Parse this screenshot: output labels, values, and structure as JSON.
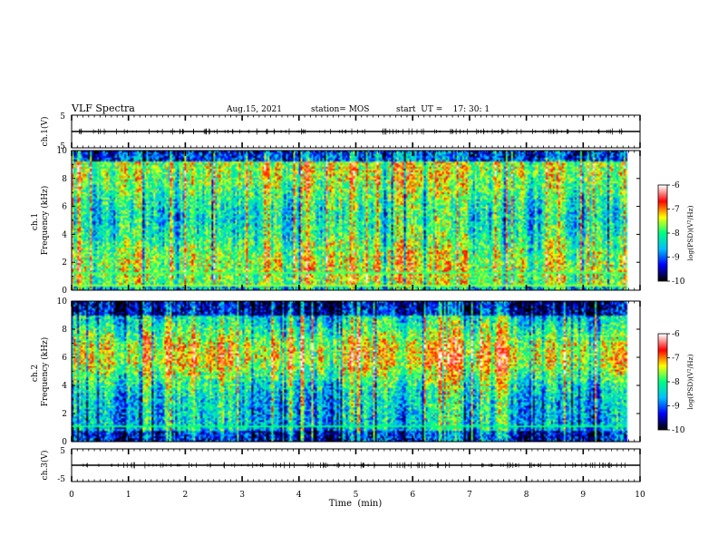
{
  "header": {
    "title": "VLF Spectra",
    "date": "Aug.15, 2021",
    "station": "station= MOS",
    "start": "start  UT =    17: 30: 1"
  },
  "chart_data": [
    {
      "type": "line",
      "name": "ch1-waveform",
      "ylabel": "ch.1(V)",
      "ylim": [
        -5,
        5
      ],
      "yticks": [
        "5",
        "-5"
      ],
      "xlim": [
        0,
        10
      ],
      "level": 0
    },
    {
      "type": "heatmap",
      "name": "ch1-spectrogram",
      "ylabel": "ch.1\nFrequency (kHz)",
      "ylim": [
        0,
        10
      ],
      "yticks": [
        "0",
        "2",
        "4",
        "6",
        "8",
        "10"
      ],
      "xlim": [
        0,
        10
      ],
      "colorbar": {
        "label": "log(PSD)(V²/Hz)",
        "range": [
          -10,
          -6
        ],
        "ticks": [
          "-6",
          "-7",
          "-8",
          "-9",
          "-10"
        ]
      },
      "data_end_min": 9.8
    },
    {
      "type": "heatmap",
      "name": "ch2-spectrogram",
      "ylabel": "ch.2\nFrequency (kHz)",
      "ylim": [
        0,
        10
      ],
      "yticks": [
        "0",
        "2",
        "4",
        "6",
        "8",
        "10"
      ],
      "xlim": [
        0,
        10
      ],
      "colorbar": {
        "label": "log(PSD)(V²/Hz)",
        "range": [
          -10,
          -6
        ],
        "ticks": [
          "-6",
          "-7",
          "-8",
          "-9",
          "-10"
        ]
      },
      "data_end_min": 9.8
    },
    {
      "type": "line",
      "name": "ch3-waveform",
      "ylabel": "ch.3(V)",
      "ylim": [
        -5,
        5
      ],
      "yticks": [
        "5",
        "-5"
      ],
      "xlim": [
        0,
        10
      ],
      "level": 0
    }
  ],
  "xaxis": {
    "label": "Time  (min)",
    "ticks": [
      "0",
      "1",
      "2",
      "3",
      "4",
      "5",
      "6",
      "7",
      "8",
      "9",
      "10"
    ]
  },
  "colors": {
    "colormap": [
      "#000000",
      "#0000ff",
      "#00c0ff",
      "#00ff80",
      "#ffff00",
      "#ff0000",
      "#ffffff"
    ]
  }
}
